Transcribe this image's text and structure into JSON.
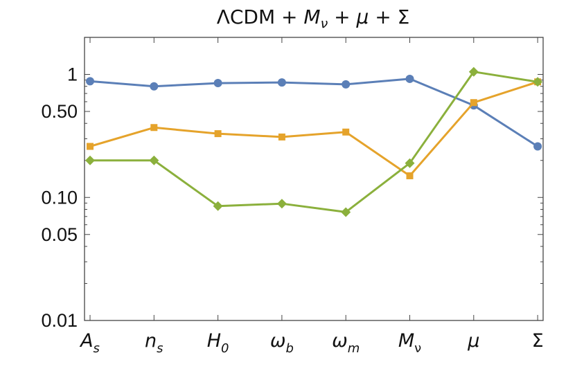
{
  "chart_data": {
    "type": "line",
    "title": "ΛCDM + M_ν + μ + Σ",
    "title_parts": {
      "base": "ΛCDM",
      "plus": "+",
      "p1": "M",
      "p1_sub": "ν",
      "p2": "μ",
      "p3": "Σ"
    },
    "x": [
      "A_s",
      "n_s",
      "H_0",
      "ω_b",
      "ω_m",
      "M_ν",
      "μ",
      "Σ"
    ],
    "x_tick_labels": [
      {
        "main": "A",
        "sub": "s"
      },
      {
        "main": "n",
        "sub": "s"
      },
      {
        "main": "H",
        "sub": "0"
      },
      {
        "main": "ω",
        "sub": "b"
      },
      {
        "main": "ω",
        "sub": "m"
      },
      {
        "main": "M",
        "sub": "ν"
      },
      {
        "main": "μ",
        "sub": ""
      },
      {
        "main": "Σ",
        "sub": ""
      }
    ],
    "yscale": "log",
    "ylim": [
      0.01,
      2.0
    ],
    "y_ticks": [
      0.01,
      0.05,
      0.1,
      0.5,
      1
    ],
    "y_tick_labels": [
      "0.01",
      "0.05",
      "0.10",
      "0.50",
      "1"
    ],
    "xlabel": "",
    "ylabel": "",
    "grid": false,
    "series": [
      {
        "name": "blue",
        "color": "#5b7fb7",
        "marker": "circle",
        "values": [
          0.88,
          0.8,
          0.85,
          0.86,
          0.83,
          0.92,
          0.56,
          0.26
        ]
      },
      {
        "name": "orange",
        "color": "#e5a32b",
        "marker": "square",
        "values": [
          0.26,
          0.37,
          0.33,
          0.31,
          0.34,
          0.15,
          0.59,
          0.87
        ]
      },
      {
        "name": "green",
        "color": "#8bb03c",
        "marker": "diamond",
        "values": [
          0.2,
          0.2,
          0.085,
          0.089,
          0.076,
          0.19,
          1.05,
          0.87
        ]
      }
    ]
  }
}
